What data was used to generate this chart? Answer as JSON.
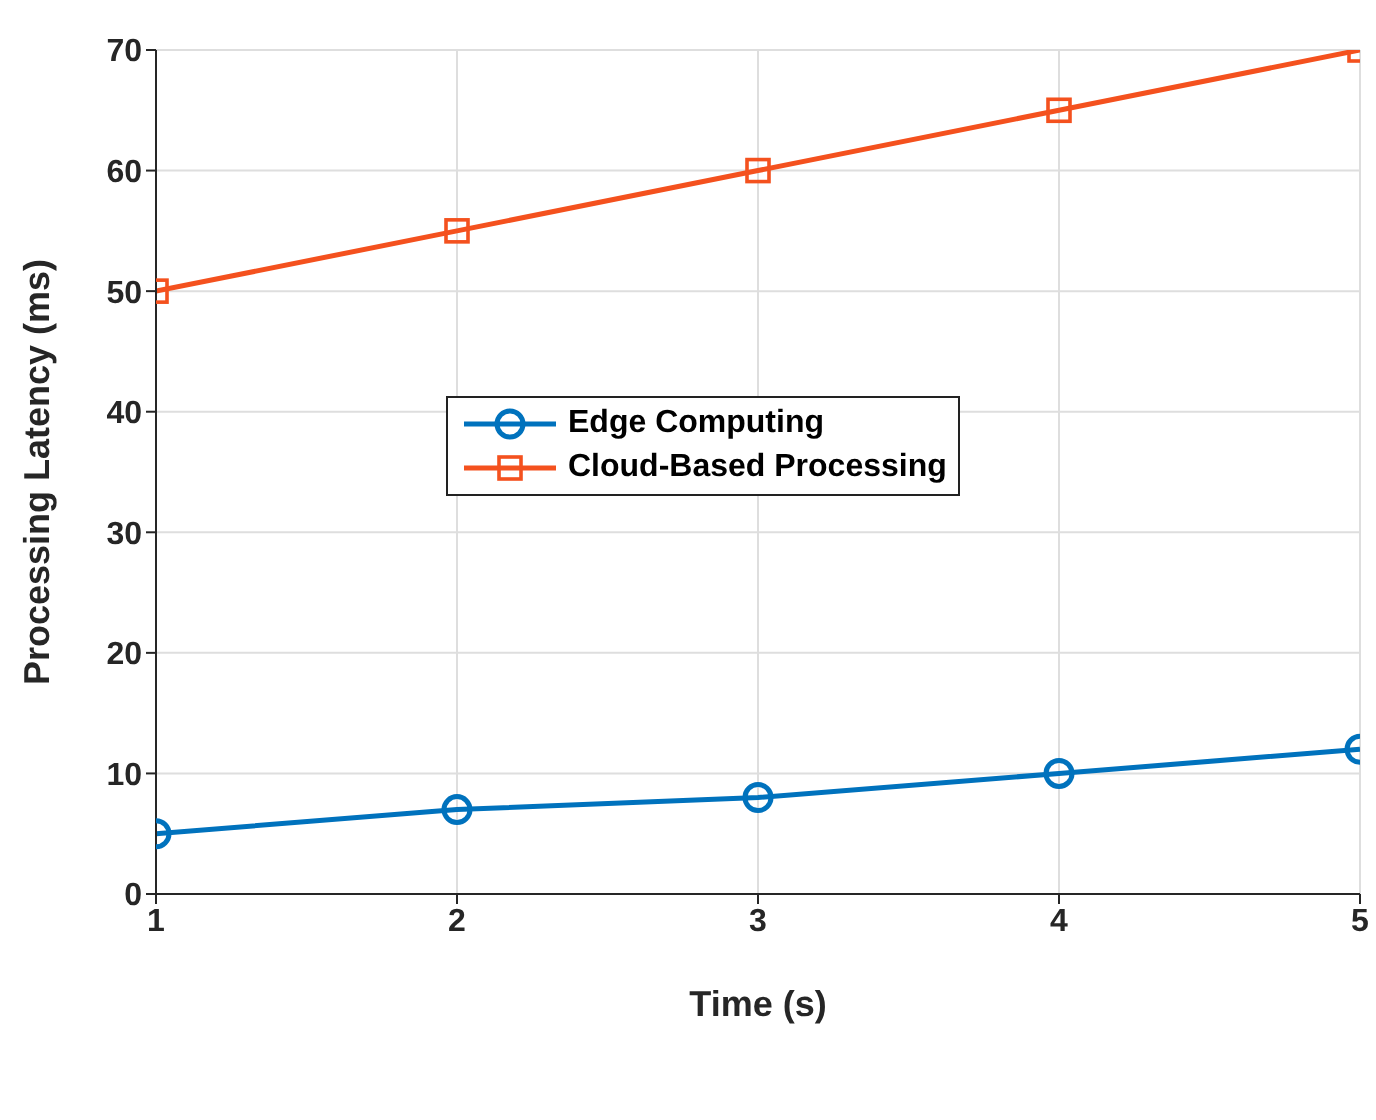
{
  "chart_data": {
    "type": "line",
    "xlabel": "Time (s)",
    "ylabel": "Processing Latency (ms)",
    "x": [
      1,
      2,
      3,
      4,
      5
    ],
    "series": [
      {
        "name": "Edge Computing",
        "color": "#0072bd",
        "values": [
          5,
          7,
          8,
          10,
          12
        ],
        "marker": "circle"
      },
      {
        "name": "Cloud-Based Processing",
        "color": "#f4511e",
        "values": [
          50,
          55,
          60,
          65,
          70
        ],
        "marker": "square"
      }
    ],
    "xlim": [
      1,
      5
    ],
    "xticks": [
      1,
      2,
      3,
      4,
      5
    ],
    "ylim": [
      0,
      70
    ],
    "yticks": [
      0,
      10,
      20,
      30,
      40,
      50,
      60,
      70
    ],
    "grid": true,
    "legend": "center",
    "line_style": "solid"
  }
}
